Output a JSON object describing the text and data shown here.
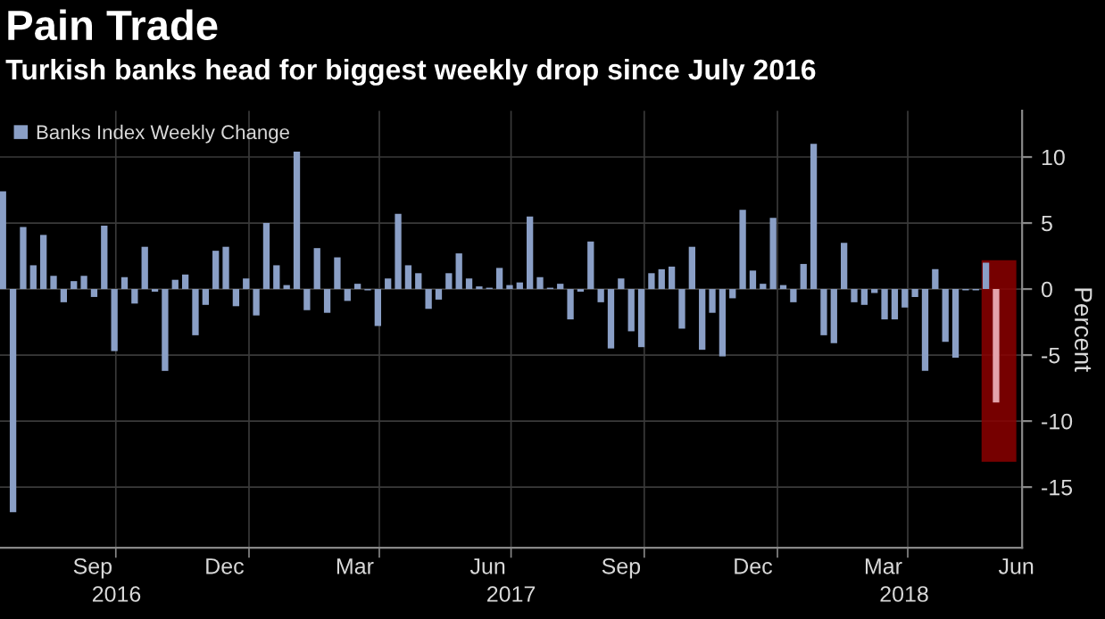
{
  "chart_data": {
    "type": "bar",
    "title": "Pain Trade",
    "subtitle": "Turkish banks head for biggest weekly drop since July 2016",
    "ylabel": "Percent",
    "x": [
      "2016-07-15",
      "2016-07-22",
      "2016-07-29",
      "2016-08-05",
      "2016-08-12",
      "2016-08-19",
      "2016-08-26",
      "2016-09-02",
      "2016-09-09",
      "2016-09-16",
      "2016-09-23",
      "2016-09-30",
      "2016-10-07",
      "2016-10-14",
      "2016-10-21",
      "2016-10-28",
      "2016-11-04",
      "2016-11-11",
      "2016-11-18",
      "2016-11-25",
      "2016-12-02",
      "2016-12-09",
      "2016-12-16",
      "2016-12-23",
      "2016-12-30",
      "2017-01-06",
      "2017-01-13",
      "2017-01-20",
      "2017-01-27",
      "2017-02-03",
      "2017-02-10",
      "2017-02-17",
      "2017-02-24",
      "2017-03-03",
      "2017-03-10",
      "2017-03-17",
      "2017-03-24",
      "2017-03-31",
      "2017-04-07",
      "2017-04-14",
      "2017-04-21",
      "2017-04-28",
      "2017-05-05",
      "2017-05-12",
      "2017-05-19",
      "2017-05-26",
      "2017-06-02",
      "2017-06-09",
      "2017-06-16",
      "2017-06-23",
      "2017-06-30",
      "2017-07-07",
      "2017-07-14",
      "2017-07-21",
      "2017-07-28",
      "2017-08-04",
      "2017-08-11",
      "2017-08-18",
      "2017-08-25",
      "2017-09-01",
      "2017-09-08",
      "2017-09-15",
      "2017-09-22",
      "2017-09-29",
      "2017-10-06",
      "2017-10-13",
      "2017-10-20",
      "2017-10-27",
      "2017-11-03",
      "2017-11-10",
      "2017-11-17",
      "2017-11-24",
      "2017-12-01",
      "2017-12-08",
      "2017-12-15",
      "2017-12-22",
      "2017-12-29",
      "2018-01-05",
      "2018-01-12",
      "2018-01-19",
      "2018-01-26",
      "2018-02-02",
      "2018-02-09",
      "2018-02-16",
      "2018-02-23",
      "2018-03-02",
      "2018-03-09",
      "2018-03-16",
      "2018-03-23",
      "2018-03-30",
      "2018-04-06",
      "2018-04-13",
      "2018-04-20",
      "2018-04-27",
      "2018-05-04",
      "2018-05-11",
      "2018-05-18",
      "2018-05-25",
      "2018-06-01"
    ],
    "series": [
      {
        "name": "Banks Index Weekly Change",
        "color": "#8a9fc6",
        "values": [
          7.4,
          -16.9,
          4.7,
          1.8,
          4.1,
          1.0,
          -1.0,
          0.6,
          1.0,
          -0.6,
          4.8,
          -4.7,
          0.9,
          -1.1,
          3.2,
          -0.2,
          -6.2,
          0.7,
          1.1,
          -3.5,
          -1.2,
          2.9,
          3.2,
          -1.3,
          0.8,
          -2.0,
          5.0,
          1.8,
          0.3,
          10.4,
          -1.6,
          3.1,
          -1.8,
          2.4,
          -0.9,
          0.4,
          -0.1,
          -2.8,
          0.8,
          5.7,
          1.8,
          1.2,
          -1.5,
          -0.8,
          1.2,
          2.7,
          0.8,
          0.2,
          0.1,
          1.6,
          0.3,
          0.5,
          5.5,
          0.9,
          0.1,
          0.4,
          -2.3,
          -0.2,
          3.6,
          -1.0,
          -4.5,
          0.8,
          -3.2,
          -4.4,
          1.2,
          1.5,
          1.7,
          -3.0,
          3.2,
          -4.6,
          -1.8,
          -5.1,
          -0.7,
          6.0,
          1.4,
          0.4,
          5.4,
          0.3,
          -1.0,
          1.9,
          11.0,
          -3.5,
          -4.1,
          3.5,
          -1.0,
          -1.2,
          -0.3,
          -2.3,
          -2.3,
          -1.4,
          -0.6,
          -6.2,
          1.5,
          -4.0,
          -5.2,
          -0.1,
          -0.1,
          2.0,
          -8.6
        ],
        "colors": [
          "#8a9fc6",
          "#8a9fc6",
          "#8a9fc6",
          "#8a9fc6",
          "#8a9fc6",
          "#8a9fc6",
          "#8a9fc6",
          "#8a9fc6",
          "#8a9fc6",
          "#8a9fc6",
          "#8a9fc6",
          "#8a9fc6",
          "#8a9fc6",
          "#8a9fc6",
          "#8a9fc6",
          "#8a9fc6",
          "#8a9fc6",
          "#8a9fc6",
          "#8a9fc6",
          "#8a9fc6",
          "#8a9fc6",
          "#8a9fc6",
          "#8a9fc6",
          "#8a9fc6",
          "#8a9fc6",
          "#8a9fc6",
          "#8a9fc6",
          "#8a9fc6",
          "#8a9fc6",
          "#8a9fc6",
          "#8a9fc6",
          "#8a9fc6",
          "#8a9fc6",
          "#8a9fc6",
          "#8a9fc6",
          "#8a9fc6",
          "#8a9fc6",
          "#8a9fc6",
          "#8a9fc6",
          "#8a9fc6",
          "#8a9fc6",
          "#8a9fc6",
          "#8a9fc6",
          "#8a9fc6",
          "#8a9fc6",
          "#8a9fc6",
          "#8a9fc6",
          "#8a9fc6",
          "#8a9fc6",
          "#8a9fc6",
          "#8a9fc6",
          "#8a9fc6",
          "#8a9fc6",
          "#8a9fc6",
          "#8a9fc6",
          "#8a9fc6",
          "#8a9fc6",
          "#8a9fc6",
          "#8a9fc6",
          "#8a9fc6",
          "#8a9fc6",
          "#8a9fc6",
          "#8a9fc6",
          "#8a9fc6",
          "#8a9fc6",
          "#8a9fc6",
          "#8a9fc6",
          "#8a9fc6",
          "#8a9fc6",
          "#8a9fc6",
          "#8a9fc6",
          "#8a9fc6",
          "#8a9fc6",
          "#8a9fc6",
          "#8a9fc6",
          "#8a9fc6",
          "#8a9fc6",
          "#8a9fc6",
          "#8a9fc6",
          "#8a9fc6",
          "#8a9fc6",
          "#8a9fc6",
          "#8a9fc6",
          "#8a9fc6",
          "#8a9fc6",
          "#8a9fc6",
          "#8a9fc6",
          "#8a9fc6",
          "#8a9fc6",
          "#8a9fc6",
          "#8a9fc6",
          "#8a9fc6",
          "#8a9fc6",
          "#8a9fc6",
          "#8a9fc6",
          "#8a9fc6",
          "#8a9fc6",
          "#8a9fc6",
          "#e3a3ab"
        ]
      }
    ],
    "xlim": [
      "2016-07-13",
      "2018-06-19"
    ],
    "xticks": [
      {
        "value": "2016-09-15",
        "label": "Sep"
      },
      {
        "value": "2016-12-15",
        "label": "Dec"
      },
      {
        "value": "2017-03-15",
        "label": "Mar"
      },
      {
        "value": "2017-06-15",
        "label": "Jun"
      },
      {
        "value": "2017-09-15",
        "label": "Sep"
      },
      {
        "value": "2017-12-15",
        "label": "Dec"
      },
      {
        "value": "2018-03-15",
        "label": "Mar"
      },
      {
        "value": "2018-06-15",
        "label": "Jun"
      },
      {
        "value": "2016-10-01",
        "label": null
      },
      {
        "value": "2017-01-01",
        "label": null
      },
      {
        "value": "2017-04-01",
        "label": null
      },
      {
        "value": "2017-07-01",
        "label": null
      },
      {
        "value": "2017-10-01",
        "label": null
      },
      {
        "value": "2018-01-01",
        "label": null
      },
      {
        "value": "2018-04-01",
        "label": null
      }
    ],
    "x2lim": [
      "2016-07-17",
      "2018-06-19"
    ],
    "x2ticks": [
      {
        "value": "2016-10-05",
        "label": "2016"
      },
      {
        "value": "2017-07-03",
        "label": "2017"
      },
      {
        "value": "2018-03-30",
        "label": "2018"
      }
    ],
    "ylim": [
      -19.6,
      13.5
    ],
    "yticks": [
      -15,
      -10,
      -5,
      0,
      5,
      10
    ],
    "bands": [
      {
        "axis": "x",
        "from": "2018-05-22",
        "to": "2018-06-15",
        "color": "#8b0000"
      }
    ],
    "grid": true,
    "legend": "top left"
  }
}
